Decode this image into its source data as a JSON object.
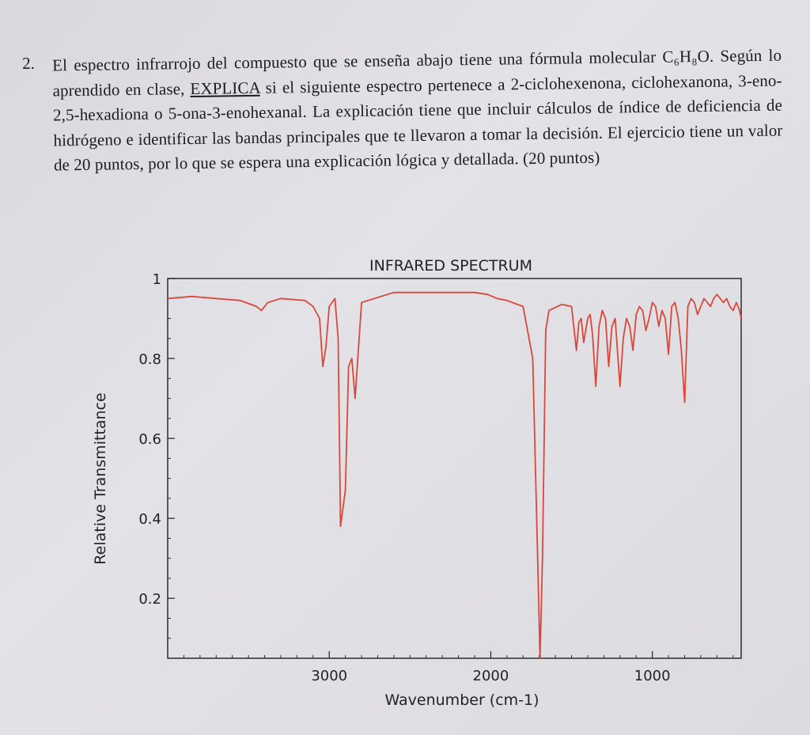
{
  "question": {
    "number": "2.",
    "text_1": "El espectro infrarrojo del compuesto que se enseña abajo tiene una fórmula molecular C₆H₈O. Según lo aprendido en clase, ",
    "emphasis": "EXPLICA",
    "text_2": " si el siguiente espectro pertenece a 2-ciclohexenona, ciclohexanona, 3-eno-2,5-hexadiona o 5-ona-3-enohexanal. La explicación tiene que incluir cálculos de índice de deficiencia de hidrógeno e identificar las bandas principales que te llevaron a tomar la decisión. El ejercicio tiene un valor de 20 puntos, por lo que se espera una explicación lógica y detallada. (20 puntos)"
  },
  "chart_data": {
    "type": "line",
    "title": "INFRARED SPECTRUM",
    "xlabel": "Wavenumber (cm-1)",
    "ylabel": "Relative Transmittance",
    "xlim": [
      4000,
      450
    ],
    "ylim": [
      0.05,
      1.0
    ],
    "x_ticks": [
      3000,
      2000,
      1000
    ],
    "x_tick_labels": [
      "3000",
      "2000",
      "1000"
    ],
    "y_ticks": [
      1.0,
      0.8,
      0.6,
      0.4,
      0.2
    ],
    "y_tick_labels": [
      "1",
      "0.8",
      "0.6",
      "0.4",
      "0.2"
    ],
    "line_color": "#d9483b",
    "grid": false,
    "series": [
      {
        "x": [
          4000,
          3850,
          3700,
          3550,
          3450,
          3420,
          3380,
          3300,
          3150,
          3100,
          3060,
          3040,
          3020,
          3000,
          2965,
          2945,
          2930,
          2900,
          2880,
          2860,
          2840,
          2800,
          2600,
          2400,
          2200,
          2100,
          2020,
          1960,
          1900,
          1800,
          1740,
          1710,
          1695,
          1680,
          1660,
          1640,
          1560,
          1500,
          1470,
          1455,
          1440,
          1425,
          1400,
          1385,
          1370,
          1350,
          1330,
          1310,
          1290,
          1270,
          1250,
          1230,
          1200,
          1180,
          1160,
          1140,
          1120,
          1100,
          1080,
          1060,
          1040,
          1020,
          1000,
          980,
          960,
          940,
          920,
          900,
          880,
          860,
          840,
          820,
          800,
          780,
          760,
          740,
          720,
          700,
          680,
          660,
          640,
          620,
          600,
          580,
          560,
          540,
          520,
          500,
          480,
          460,
          450
        ],
        "y": [
          0.95,
          0.955,
          0.95,
          0.945,
          0.93,
          0.92,
          0.94,
          0.95,
          0.945,
          0.93,
          0.9,
          0.78,
          0.83,
          0.93,
          0.95,
          0.85,
          0.38,
          0.47,
          0.78,
          0.8,
          0.7,
          0.94,
          0.965,
          0.965,
          0.965,
          0.965,
          0.96,
          0.95,
          0.945,
          0.93,
          0.8,
          0.3,
          0.05,
          0.3,
          0.87,
          0.92,
          0.935,
          0.93,
          0.82,
          0.89,
          0.9,
          0.84,
          0.9,
          0.91,
          0.86,
          0.73,
          0.88,
          0.92,
          0.9,
          0.78,
          0.88,
          0.9,
          0.73,
          0.85,
          0.9,
          0.88,
          0.82,
          0.91,
          0.93,
          0.92,
          0.87,
          0.9,
          0.94,
          0.93,
          0.88,
          0.92,
          0.9,
          0.81,
          0.93,
          0.94,
          0.9,
          0.82,
          0.69,
          0.93,
          0.95,
          0.94,
          0.91,
          0.93,
          0.95,
          0.94,
          0.93,
          0.95,
          0.96,
          0.95,
          0.94,
          0.95,
          0.93,
          0.92,
          0.94,
          0.92,
          0.9
        ]
      }
    ]
  }
}
